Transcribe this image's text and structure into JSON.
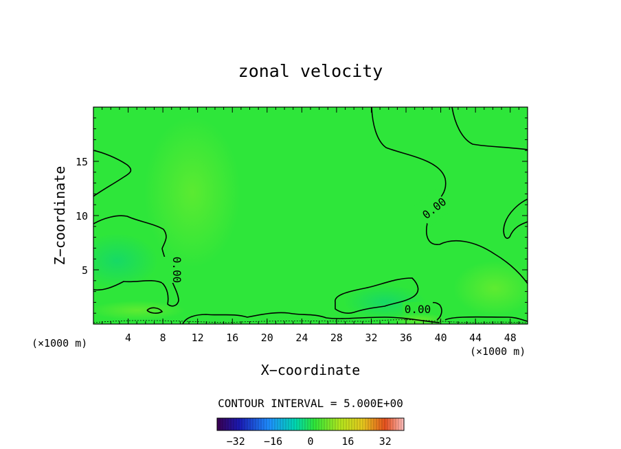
{
  "chart_data": {
    "type": "heatmap",
    "title": "zonal velocity",
    "xlabel": "X−coordinate",
    "ylabel": "Z−coordinate",
    "x_units": "(×1000 m)",
    "z_units": "(×1000 m)",
    "xlim": [
      0,
      50
    ],
    "ylim": [
      0,
      20
    ],
    "x_ticks": [
      4,
      8,
      12,
      16,
      20,
      24,
      28,
      32,
      36,
      40,
      44,
      48
    ],
    "y_ticks": [
      5,
      10,
      15
    ],
    "contour_interval_text": "CONTOUR INTERVAL = 5.000E+00",
    "contour_labels": [
      "0.00",
      "0.00",
      "0.00"
    ],
    "colorbar": {
      "range": [
        -40,
        40
      ],
      "ticks": [
        -32,
        -16,
        0,
        16,
        32
      ],
      "tick_labels": [
        "−32",
        "−16",
        "0",
        "16",
        "32"
      ]
    },
    "field_description_value_range": [
      -5,
      5
    ],
    "colors": {
      "field_base": "#2ee63a",
      "field_positive": "#7ef02a",
      "field_negative": "#19de55",
      "contour": "#000000"
    }
  }
}
